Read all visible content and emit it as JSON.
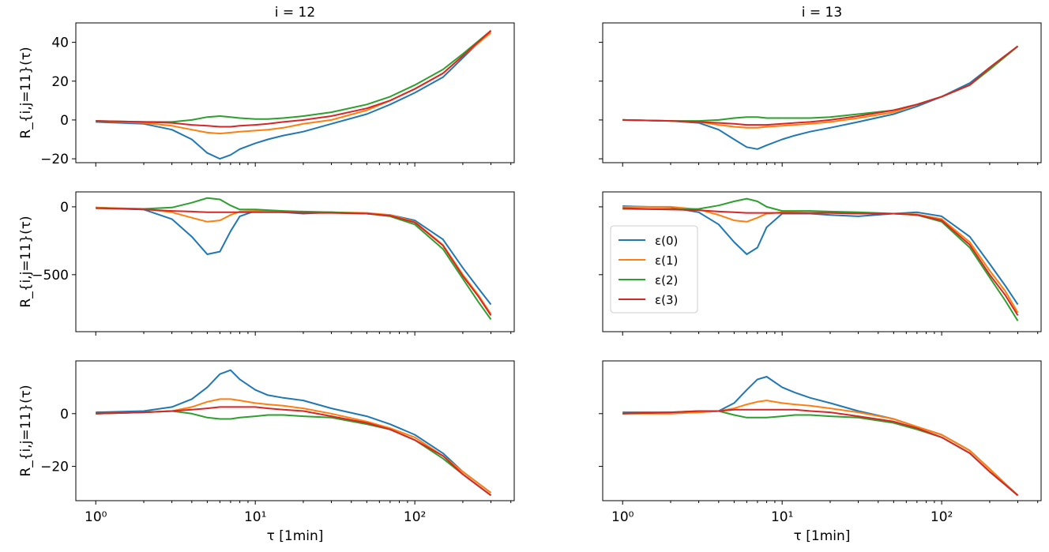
{
  "chart_data": [
    {
      "type": "line",
      "panel": "i12-row1",
      "title": "i = 12",
      "xlabel": "",
      "ylabel": "R_{i,j=11}(τ)",
      "xscale": "log",
      "xlim": [
        0.75,
        420
      ],
      "ylim": [
        -22,
        50
      ],
      "yticks": [
        -20,
        0,
        20,
        40
      ],
      "yticklabels": [
        "−20",
        "0",
        "20",
        "40"
      ],
      "x": [
        1,
        2,
        3,
        4,
        5,
        6,
        7,
        8,
        10,
        12,
        15,
        20,
        30,
        50,
        70,
        100,
        150,
        200,
        300
      ],
      "series": [
        {
          "name": "ε(0)",
          "values": [
            -1,
            -2,
            -5,
            -10,
            -17,
            -20,
            -18,
            -15,
            -12,
            -10,
            -8,
            -6,
            -2,
            3,
            8,
            14,
            22,
            32,
            46
          ]
        },
        {
          "name": "ε(1)",
          "values": [
            -0.5,
            -1.5,
            -3,
            -5,
            -6.5,
            -7,
            -6.5,
            -6,
            -5.5,
            -5,
            -4,
            -2,
            0,
            5,
            10,
            16,
            24,
            33,
            45
          ]
        },
        {
          "name": "ε(2)",
          "values": [
            -0.5,
            -1,
            -1,
            0,
            1.5,
            2,
            1.5,
            1,
            0.5,
            0.5,
            1,
            2,
            4,
            8,
            12,
            18,
            26,
            34,
            46
          ]
        },
        {
          "name": "ε(3)",
          "values": [
            -0.5,
            -1,
            -1.5,
            -2.5,
            -3,
            -3.5,
            -3.5,
            -3,
            -2.5,
            -2,
            -1,
            0,
            2,
            6,
            10,
            16,
            24,
            33,
            46
          ]
        }
      ]
    },
    {
      "type": "line",
      "panel": "i13-row1",
      "title": "i = 13",
      "xlabel": "",
      "ylabel": "",
      "xscale": "log",
      "xlim": [
        0.75,
        420
      ],
      "ylim": [
        -22,
        50
      ],
      "yticks": [
        -20,
        0,
        20,
        40
      ],
      "yticklabels": [
        "",
        "",
        "",
        ""
      ],
      "x": [
        1,
        2,
        3,
        4,
        5,
        6,
        7,
        8,
        10,
        12,
        15,
        20,
        30,
        50,
        70,
        100,
        150,
        200,
        300
      ],
      "series": [
        {
          "name": "ε(0)",
          "values": [
            0,
            -0.5,
            -1.5,
            -5,
            -10,
            -14,
            -15,
            -13,
            -10,
            -8,
            -6,
            -4,
            -1,
            3,
            7,
            12,
            19,
            27,
            38
          ]
        },
        {
          "name": "ε(1)",
          "values": [
            0,
            -0.5,
            -1,
            -2.5,
            -3.5,
            -4,
            -4,
            -3.5,
            -3,
            -2.5,
            -2,
            -1,
            1,
            4,
            8,
            12,
            18,
            26,
            38
          ]
        },
        {
          "name": "ε(2)",
          "values": [
            0,
            -0.5,
            -0.5,
            0,
            1,
            1.5,
            1.5,
            1,
            1,
            1,
            1,
            1.5,
            3,
            5,
            8,
            12,
            18,
            26,
            38
          ]
        },
        {
          "name": "ε(3)",
          "values": [
            0,
            -0.5,
            -1,
            -1.5,
            -2,
            -2.5,
            -2.5,
            -2.5,
            -2,
            -1.5,
            -1,
            0,
            2,
            5,
            8,
            12,
            18,
            27,
            38
          ]
        }
      ]
    },
    {
      "type": "line",
      "panel": "i12-row2",
      "title": "",
      "xlabel": "",
      "ylabel": "R_{i,j=11}(τ)",
      "xscale": "log",
      "xlim": [
        0.75,
        420
      ],
      "ylim": [
        -920,
        110
      ],
      "yticks": [
        0,
        -500
      ],
      "yticklabels": [
        "0",
        "−500"
      ],
      "x": [
        1,
        2,
        3,
        4,
        5,
        6,
        7,
        8,
        10,
        15,
        20,
        30,
        50,
        70,
        100,
        150,
        200,
        250,
        300
      ],
      "series": [
        {
          "name": "ε(0)",
          "values": [
            -5,
            -20,
            -90,
            -220,
            -350,
            -330,
            -180,
            -70,
            -30,
            -40,
            -50,
            -40,
            -50,
            -60,
            -100,
            -240,
            -450,
            -600,
            -720
          ]
        },
        {
          "name": "ε(1)",
          "values": [
            -5,
            -15,
            -40,
            -80,
            -110,
            -100,
            -60,
            -35,
            -30,
            -35,
            -40,
            -40,
            -45,
            -60,
            -110,
            -280,
            -500,
            -650,
            -790
          ]
        },
        {
          "name": "ε(2)",
          "values": [
            -10,
            -15,
            -5,
            30,
            65,
            55,
            10,
            -20,
            -20,
            -30,
            -35,
            -40,
            -50,
            -70,
            -130,
            -310,
            -530,
            -700,
            -830
          ]
        },
        {
          "name": "ε(3)",
          "values": [
            -10,
            -20,
            -30,
            -35,
            -40,
            -40,
            -40,
            -40,
            -40,
            -40,
            -45,
            -45,
            -50,
            -65,
            -115,
            -285,
            -510,
            -660,
            -800
          ]
        }
      ]
    },
    {
      "type": "line",
      "panel": "i13-row2",
      "title": "",
      "xlabel": "",
      "ylabel": "",
      "xscale": "log",
      "xlim": [
        0.75,
        420
      ],
      "ylim": [
        -920,
        110
      ],
      "yticks": [
        0,
        -500
      ],
      "yticklabels": [
        "",
        ""
      ],
      "legend": {
        "position": "center-left",
        "entries": [
          "ε(0)",
          "ε(1)",
          "ε(2)",
          "ε(3)"
        ]
      },
      "x": [
        1,
        2,
        3,
        4,
        5,
        6,
        7,
        8,
        10,
        15,
        20,
        30,
        50,
        70,
        100,
        150,
        200,
        250,
        300
      ],
      "series": [
        {
          "name": "ε(0)",
          "values": [
            5,
            -5,
            -40,
            -130,
            -260,
            -350,
            -300,
            -150,
            -50,
            -50,
            -60,
            -70,
            -50,
            -40,
            -70,
            -220,
            -420,
            -580,
            -720
          ]
        },
        {
          "name": "ε(1)",
          "values": [
            0,
            0,
            -20,
            -60,
            -100,
            -110,
            -80,
            -50,
            -40,
            -45,
            -45,
            -50,
            -50,
            -55,
            -90,
            -260,
            -470,
            -620,
            -780
          ]
        },
        {
          "name": "ε(2)",
          "values": [
            -15,
            -20,
            -15,
            10,
            40,
            60,
            40,
            0,
            -30,
            -30,
            -35,
            -40,
            -50,
            -60,
            -110,
            -300,
            -520,
            -690,
            -840
          ]
        },
        {
          "name": "ε(3)",
          "values": [
            -10,
            -20,
            -25,
            -35,
            -40,
            -45,
            -45,
            -45,
            -45,
            -45,
            -45,
            -50,
            -50,
            -60,
            -100,
            -280,
            -500,
            -650,
            -800
          ]
        }
      ]
    },
    {
      "type": "line",
      "panel": "i12-row3",
      "title": "",
      "xlabel": "τ [1min]",
      "ylabel": "R_{i,j=11}(τ)",
      "xscale": "log",
      "xlim": [
        0.75,
        420
      ],
      "ylim": [
        -33,
        20
      ],
      "yticks": [
        0,
        -20
      ],
      "yticklabels": [
        "0",
        "−20"
      ],
      "xticks": [
        1,
        10,
        100
      ],
      "xticklabels": [
        "10⁰",
        "10¹",
        "10²"
      ],
      "x": [
        1,
        2,
        3,
        4,
        5,
        6,
        7,
        8,
        10,
        12,
        15,
        20,
        30,
        50,
        70,
        100,
        150,
        200,
        300
      ],
      "series": [
        {
          "name": "ε(0)",
          "values": [
            0.5,
            1,
            2.5,
            5.5,
            10,
            15,
            16.5,
            13,
            9,
            7,
            6,
            5,
            2,
            -1,
            -4,
            -8,
            -15,
            -22,
            -30
          ]
        },
        {
          "name": "ε(1)",
          "values": [
            0,
            0.5,
            1,
            2.5,
            4.5,
            5.5,
            5.5,
            5,
            4,
            3.5,
            3,
            2,
            0,
            -3,
            -5.5,
            -9,
            -16,
            -22,
            -30
          ]
        },
        {
          "name": "ε(2)",
          "values": [
            0,
            0.5,
            1,
            0,
            -1.5,
            -2,
            -2,
            -1.5,
            -1,
            -0.5,
            -0.5,
            -1,
            -1.5,
            -4,
            -6,
            -10,
            -17,
            -23,
            -31
          ]
        },
        {
          "name": "ε(3)",
          "values": [
            0,
            0.5,
            1,
            1.5,
            2,
            2.5,
            2.5,
            2.5,
            2.5,
            2,
            1.5,
            1,
            -1,
            -3.5,
            -6,
            -10,
            -16,
            -23,
            -31
          ]
        }
      ]
    },
    {
      "type": "line",
      "panel": "i13-row3",
      "title": "",
      "xlabel": "τ [1min]",
      "ylabel": "",
      "xscale": "log",
      "xlim": [
        0.75,
        420
      ],
      "ylim": [
        -33,
        20
      ],
      "yticks": [
        0,
        -20
      ],
      "yticklabels": [
        "",
        ""
      ],
      "xticks": [
        1,
        10,
        100
      ],
      "xticklabels": [
        "10⁰",
        "10¹",
        "10²"
      ],
      "x": [
        1,
        2,
        3,
        4,
        5,
        6,
        7,
        8,
        10,
        12,
        15,
        20,
        30,
        50,
        70,
        100,
        150,
        200,
        300
      ],
      "series": [
        {
          "name": "ε(0)",
          "values": [
            0.5,
            0.5,
            0.5,
            1,
            4,
            9,
            13,
            14,
            10,
            8,
            6,
            4,
            1,
            -2,
            -5,
            -8,
            -14,
            -21,
            -31
          ]
        },
        {
          "name": "ε(1)",
          "values": [
            0,
            0,
            0.5,
            1,
            2,
            3.5,
            4.5,
            5,
            4,
            3.5,
            3,
            2,
            0.5,
            -2,
            -5,
            -8,
            -14,
            -21,
            -31
          ]
        },
        {
          "name": "ε(2)",
          "values": [
            0,
            0.5,
            1,
            1,
            -0.5,
            -1.5,
            -1.5,
            -1.5,
            -1,
            -0.5,
            -0.5,
            -1,
            -1.5,
            -3.5,
            -6,
            -9,
            -15,
            -22,
            -31
          ]
        },
        {
          "name": "ε(3)",
          "values": [
            0,
            0.5,
            1,
            1,
            1.5,
            1.5,
            1.5,
            1.5,
            1.5,
            1.5,
            1,
            0.5,
            -1,
            -3,
            -5.5,
            -9,
            -15,
            -22,
            -31
          ]
        }
      ]
    }
  ],
  "colors": {
    "ε(0)": "#1f77b4",
    "ε(1)": "#ff7f0e",
    "ε(2)": "#2ca02c",
    "ε(3)": "#d62728"
  }
}
